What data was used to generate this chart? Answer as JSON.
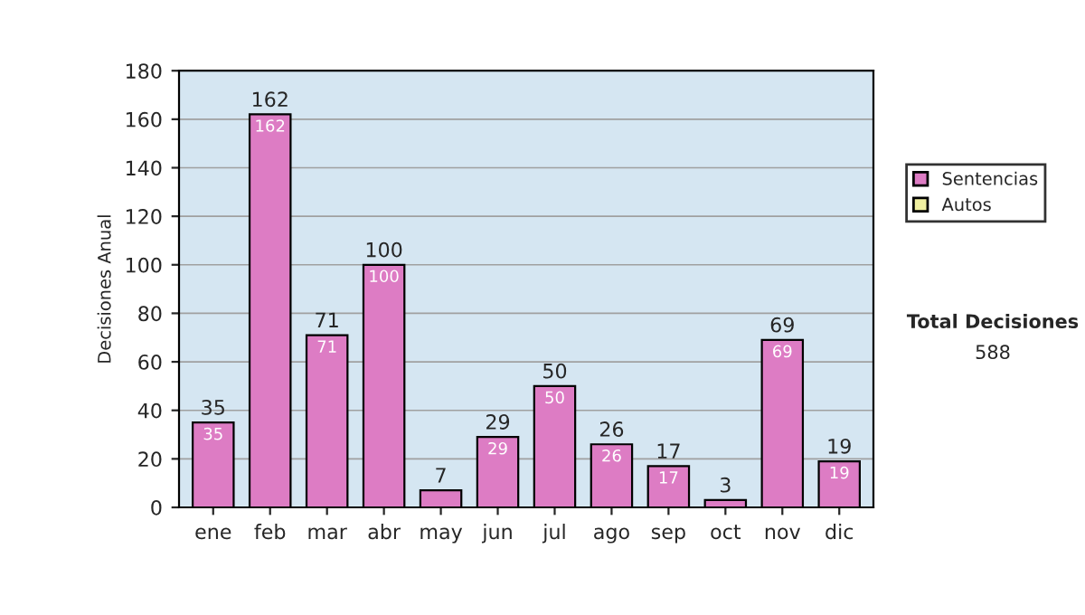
{
  "chart_data": {
    "type": "bar",
    "stacked": true,
    "ylabel": "Decisiones Anual",
    "categories": [
      "ene",
      "feb",
      "mar",
      "abr",
      "may",
      "jun",
      "jul",
      "ago",
      "sep",
      "oct",
      "nov",
      "dic"
    ],
    "series": [
      {
        "name": "Sentencias",
        "color": "#dd7cc4",
        "values": [
          35,
          162,
          71,
          100,
          7,
          29,
          50,
          26,
          17,
          3,
          69,
          19
        ],
        "value_labels": [
          "35",
          "162",
          "71",
          "100",
          null,
          "29",
          "50",
          "26",
          "17",
          null,
          "69",
          "19"
        ]
      },
      {
        "name": "Autos",
        "color": "#f0f0a0",
        "values": [
          null,
          null,
          null,
          null,
          null,
          null,
          null,
          null,
          null,
          null,
          null,
          null
        ]
      }
    ],
    "totals": [
      "35",
      "162",
      "71",
      "100",
      "7",
      "29",
      "50",
      "26",
      "17",
      "3",
      "69",
      "19"
    ],
    "ylim": [
      0,
      180
    ],
    "yticks": [
      0,
      20,
      40,
      60,
      80,
      100,
      120,
      140,
      160,
      180
    ],
    "grid": "y",
    "legend": "right",
    "annotations": [
      "Total Decisiones",
      "588"
    ]
  }
}
